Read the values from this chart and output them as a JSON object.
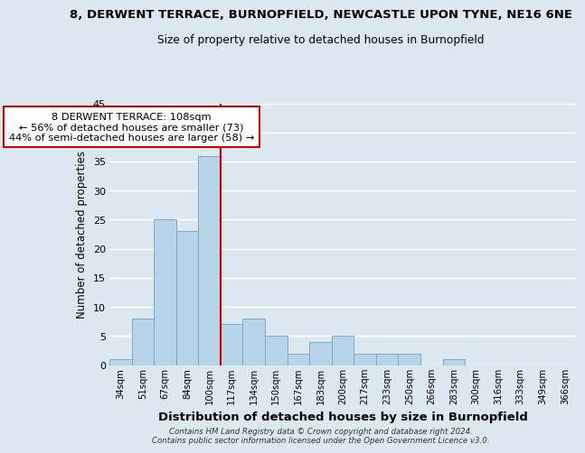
{
  "title_line1": "8, DERWENT TERRACE, BURNOPFIELD, NEWCASTLE UPON TYNE, NE16 6NE",
  "title_line2": "Size of property relative to detached houses in Burnopfield",
  "xlabel": "Distribution of detached houses by size in Burnopfield",
  "ylabel": "Number of detached properties",
  "bin_labels": [
    "34sqm",
    "51sqm",
    "67sqm",
    "84sqm",
    "100sqm",
    "117sqm",
    "134sqm",
    "150sqm",
    "167sqm",
    "183sqm",
    "200sqm",
    "217sqm",
    "233sqm",
    "250sqm",
    "266sqm",
    "283sqm",
    "300sqm",
    "316sqm",
    "333sqm",
    "349sqm",
    "366sqm"
  ],
  "bar_heights": [
    1,
    8,
    25,
    23,
    36,
    7,
    8,
    5,
    2,
    4,
    5,
    2,
    2,
    2,
    0,
    1,
    0,
    0,
    0,
    0,
    0
  ],
  "bar_color": "#b8d4e8",
  "bar_edge_color": "#7aaac8",
  "vline_x": 4.5,
  "vline_color": "#cc0000",
  "annotation_title": "8 DERWENT TERRACE: 108sqm",
  "annotation_line1": "← 56% of detached houses are smaller (73)",
  "annotation_line2": "44% of semi-detached houses are larger (58) →",
  "annotation_box_color": "#ffffff",
  "annotation_box_edge": "#cc0000",
  "ylim": [
    0,
    45
  ],
  "yticks": [
    0,
    5,
    10,
    15,
    20,
    25,
    30,
    35,
    40,
    45
  ],
  "footer_line1": "Contains HM Land Registry data © Crown copyright and database right 2024.",
  "footer_line2": "Contains public sector information licensed under the Open Government Licence v3.0.",
  "bg_color": "#dce8f0",
  "grid_color": "#ffffff"
}
